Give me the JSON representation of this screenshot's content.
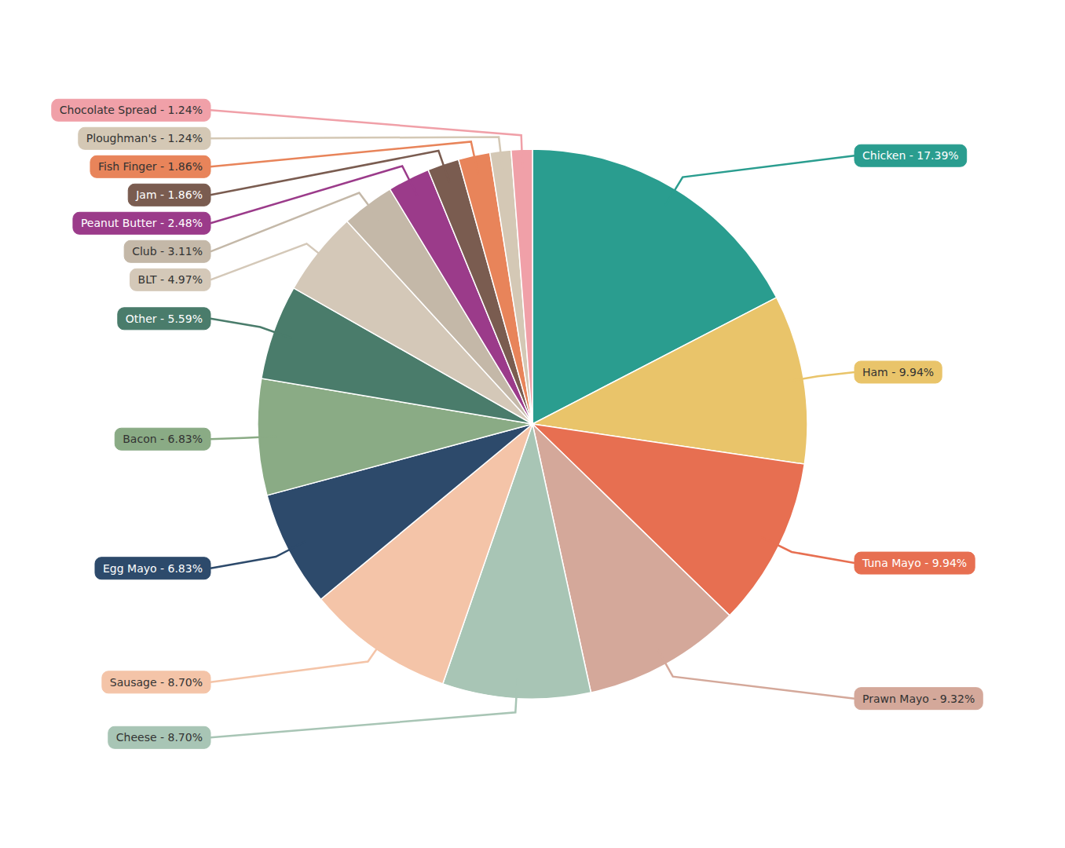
{
  "chart_data": {
    "type": "pie",
    "categories": [
      "Chicken",
      "Ham",
      "Tuna Mayo",
      "Prawn Mayo",
      "Cheese",
      "Sausage",
      "Egg Mayo",
      "Bacon",
      "Other",
      "BLT",
      "Club",
      "Peanut Butter",
      "Jam",
      "Fish Finger",
      "Ploughman's",
      "Chocolate Spread"
    ],
    "values": [
      17.39,
      9.94,
      9.94,
      9.32,
      8.7,
      8.7,
      6.83,
      6.83,
      5.59,
      4.97,
      3.11,
      2.48,
      1.86,
      1.86,
      1.24,
      1.24
    ],
    "value_labels": [
      "Chicken - 17.39%",
      "Ham - 9.94%",
      "Tuna Mayo - 9.94%",
      "Prawn Mayo - 9.32%",
      "Cheese - 8.70%",
      "Sausage - 8.70%",
      "Egg Mayo - 6.83%",
      "Bacon - 6.83%",
      "Other - 5.59%",
      "BLT - 4.97%",
      "Club - 3.11%",
      "Peanut Butter - 2.48%",
      "Jam - 1.86%",
      "Fish Finger - 1.86%",
      "Ploughman's - 1.24%",
      "Chocolate Spread - 1.24%"
    ],
    "colors": [
      "#2a9d8f",
      "#e9c46a",
      "#e76f51",
      "#d4a89a",
      "#a8c5b5",
      "#f4c4a8",
      "#2d4a6b",
      "#8aab85",
      "#4a7c6b",
      "#d4c8b8",
      "#c4b8a8",
      "#9b3b8a",
      "#7a5c50",
      "#e8845a",
      "#d4c8b5",
      "#f0a0a8"
    ],
    "data_labels": true
  }
}
